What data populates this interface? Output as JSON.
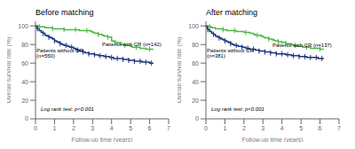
{
  "chart_data": [
    {
      "type": "step",
      "title": "Before matching",
      "xlabel": "Follow-up time (years)",
      "ylabel": "Overall survival rate (%)",
      "xlim": [
        0,
        7
      ],
      "ylim": [
        0,
        105
      ],
      "xticks": [
        0,
        1,
        2,
        3,
        4,
        5,
        6,
        7
      ],
      "yticks": [
        0,
        20,
        40,
        60,
        80,
        100
      ],
      "grid": false,
      "series": [
        {
          "color": "#4db848",
          "marker": "|",
          "x": [
            0,
            0.1,
            0.2,
            0.3,
            0.5,
            0.7,
            0.9,
            1.0,
            1.1,
            1.3,
            1.5,
            1.6,
            1.8,
            2.0,
            2.1,
            2.3,
            2.5,
            2.6,
            2.7,
            2.9,
            3.0,
            3.1,
            3.3,
            3.5,
            3.6,
            3.7,
            3.8,
            3.9,
            4.0,
            4.1,
            4.2,
            4.3,
            4.5,
            4.6,
            4.7,
            4.8,
            5.0,
            5.1,
            5.3,
            5.5,
            5.6,
            5.8,
            6.0,
            6.1,
            6.2
          ],
          "values": [
            100,
            100,
            99,
            99,
            98,
            98,
            97,
            97,
            97,
            97,
            96,
            96,
            96,
            96,
            96,
            95,
            95,
            95,
            95,
            94,
            93,
            92,
            91,
            90,
            89,
            89,
            88,
            88,
            84,
            83,
            82,
            82,
            80,
            80,
            79,
            79,
            78,
            77,
            77,
            76,
            76,
            75,
            75,
            75,
            75
          ]
        },
        {
          "color": "#1a3480",
          "marker": "|",
          "x": [
            0,
            0.05,
            0.1,
            0.2,
            0.3,
            0.4,
            0.5,
            0.6,
            0.7,
            0.8,
            0.9,
            1.0,
            1.1,
            1.2,
            1.3,
            1.4,
            1.5,
            1.6,
            1.7,
            1.8,
            1.9,
            2.0,
            2.1,
            2.2,
            2.3,
            2.4,
            2.5,
            2.6,
            2.7,
            2.8,
            2.9,
            3.0,
            3.1,
            3.2,
            3.3,
            3.4,
            3.5,
            3.6,
            3.7,
            3.8,
            3.9,
            4.0,
            4.1,
            4.2,
            4.3,
            4.4,
            4.5,
            4.6,
            4.7,
            4.8,
            4.9,
            5.0,
            5.1,
            5.2,
            5.3,
            5.4,
            5.5,
            5.6,
            5.7,
            5.8,
            5.9,
            6.0,
            6.1,
            6.2
          ],
          "values": [
            100,
            98,
            97,
            95,
            93,
            92,
            90,
            89,
            88,
            87,
            86,
            84,
            83,
            82,
            81,
            80,
            79,
            79,
            78,
            77,
            77,
            76,
            75,
            74,
            73,
            73,
            72,
            71,
            71,
            70,
            70,
            70,
            69,
            69,
            68,
            68,
            68,
            67,
            67,
            67,
            66,
            66,
            65,
            65,
            65,
            65,
            65,
            64,
            64,
            64,
            63,
            63,
            63,
            62,
            62,
            62,
            62,
            61,
            61,
            61,
            61,
            60,
            60,
            60
          ]
        }
      ],
      "annotations": [
        {
          "text": "Patients with CR (n=142)",
          "x": 3.5,
          "y": 78
        },
        {
          "text": "Patients without CR\n(n=550)",
          "x": 0.05,
          "y": 72
        },
        {
          "text": "Log rank test: p<0.001"
        }
      ]
    },
    {
      "type": "step",
      "title": "After matching",
      "xlabel": "Follow-up time (years)",
      "ylabel": "Overall survival rate (%)",
      "xlim": [
        0,
        7
      ],
      "ylim": [
        0,
        105
      ],
      "xticks": [
        0,
        1,
        2,
        3,
        4,
        5,
        6,
        7
      ],
      "yticks": [
        0,
        20,
        40,
        60,
        80,
        100
      ],
      "grid": false,
      "series": [
        {
          "color": "#4db848",
          "marker": "|",
          "x": [
            0,
            0.1,
            0.2,
            0.3,
            0.5,
            0.7,
            0.9,
            1.0,
            1.1,
            1.3,
            1.5,
            1.6,
            1.8,
            2.0,
            2.1,
            2.3,
            2.5,
            2.6,
            2.7,
            2.9,
            3.0,
            3.1,
            3.3,
            3.5,
            3.6,
            3.7,
            3.8,
            3.9,
            4.0,
            4.1,
            4.2,
            4.3,
            4.5,
            4.6,
            4.7,
            4.8,
            5.0,
            5.1,
            5.3,
            5.5,
            5.6,
            5.8,
            6.0,
            6.1,
            6.2
          ],
          "values": [
            100,
            100,
            99,
            98,
            97,
            97,
            96,
            96,
            95,
            95,
            95,
            94,
            94,
            93,
            93,
            92,
            91,
            90,
            90,
            89,
            88,
            87,
            86,
            85,
            84,
            84,
            83,
            83,
            82,
            82,
            81,
            81,
            80,
            79,
            79,
            78,
            78,
            77,
            77,
            76,
            76,
            76,
            75,
            75,
            75
          ]
        },
        {
          "color": "#1a3480",
          "marker": "|",
          "x": [
            0,
            0.05,
            0.1,
            0.2,
            0.3,
            0.4,
            0.5,
            0.6,
            0.7,
            0.8,
            0.9,
            1.0,
            1.1,
            1.2,
            1.3,
            1.4,
            1.5,
            1.6,
            1.7,
            1.8,
            1.9,
            2.0,
            2.1,
            2.2,
            2.3,
            2.4,
            2.5,
            2.6,
            2.7,
            2.8,
            2.9,
            3.0,
            3.1,
            3.2,
            3.3,
            3.4,
            3.5,
            3.6,
            3.7,
            3.8,
            3.9,
            4.0,
            4.1,
            4.2,
            4.3,
            4.4,
            4.5,
            4.6,
            4.7,
            4.8,
            4.9,
            5.0,
            5.1,
            5.2,
            5.3,
            5.4,
            5.5,
            5.6,
            5.7,
            5.8,
            5.9,
            6.0,
            6.1,
            6.2
          ],
          "values": [
            100,
            98,
            96,
            94,
            92,
            91,
            89,
            88,
            87,
            86,
            85,
            84,
            83,
            82,
            81,
            80,
            79,
            79,
            78,
            78,
            77,
            77,
            76,
            76,
            75,
            75,
            75,
            74,
            74,
            73,
            73,
            73,
            72,
            72,
            72,
            71,
            71,
            71,
            70,
            70,
            70,
            70,
            70,
            69,
            69,
            69,
            68,
            68,
            68,
            68,
            67,
            67,
            67,
            67,
            66,
            66,
            66,
            66,
            66,
            66,
            65,
            65,
            65,
            65
          ]
        }
      ],
      "annotations": [
        {
          "text": "Patients with CR (n=137)",
          "x": 3.5,
          "y": 77
        },
        {
          "text": "Patients without CR\n(n=381)",
          "x": 0.05,
          "y": 72
        },
        {
          "text": "Log rank test: p<0.001"
        }
      ]
    }
  ]
}
